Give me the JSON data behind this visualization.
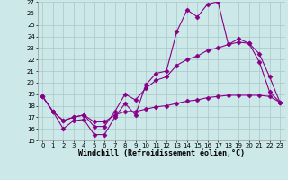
{
  "xlabel": "Windchill (Refroidissement éolien,°C)",
  "xlim": [
    -0.5,
    23.5
  ],
  "ylim": [
    15,
    27
  ],
  "xticks": [
    0,
    1,
    2,
    3,
    4,
    5,
    6,
    7,
    8,
    9,
    10,
    11,
    12,
    13,
    14,
    15,
    16,
    17,
    18,
    19,
    20,
    21,
    22,
    23
  ],
  "yticks": [
    15,
    16,
    17,
    18,
    19,
    20,
    21,
    22,
    23,
    24,
    25,
    26,
    27
  ],
  "bg_color": "#cce8e8",
  "line_color": "#880088",
  "line1_x": [
    0,
    1,
    2,
    3,
    4,
    5,
    6,
    7,
    8,
    9,
    10,
    11,
    12,
    13,
    14,
    15,
    16,
    17,
    18,
    19,
    20,
    21,
    22,
    23
  ],
  "line1_y": [
    18.8,
    17.5,
    16.0,
    16.7,
    16.8,
    15.5,
    15.5,
    17.0,
    18.2,
    17.2,
    19.8,
    20.8,
    21.0,
    24.4,
    26.3,
    25.7,
    26.8,
    27.0,
    23.3,
    23.8,
    23.4,
    21.8,
    19.2,
    18.3
  ],
  "line2_x": [
    0,
    1,
    2,
    3,
    4,
    5,
    6,
    7,
    8,
    9,
    10,
    11,
    12,
    13,
    14,
    15,
    16,
    17,
    18,
    19,
    20,
    21,
    22,
    23
  ],
  "line2_y": [
    18.8,
    17.5,
    16.7,
    17.0,
    17.2,
    16.2,
    16.2,
    17.5,
    19.0,
    18.5,
    19.5,
    20.2,
    20.5,
    21.5,
    22.0,
    22.3,
    22.8,
    23.0,
    23.3,
    23.5,
    23.4,
    22.5,
    20.5,
    18.3
  ],
  "line3_x": [
    0,
    1,
    2,
    3,
    4,
    5,
    6,
    7,
    8,
    9,
    10,
    11,
    12,
    13,
    14,
    15,
    16,
    17,
    18,
    19,
    20,
    21,
    22,
    23
  ],
  "line3_y": [
    18.8,
    17.5,
    16.7,
    17.0,
    17.2,
    16.6,
    16.6,
    17.2,
    17.5,
    17.5,
    17.7,
    17.9,
    18.0,
    18.2,
    18.4,
    18.5,
    18.7,
    18.8,
    18.9,
    18.9,
    18.9,
    18.9,
    18.8,
    18.3
  ],
  "grid_color": "#aac8c8",
  "tick_fontsize": 5.0,
  "xlabel_fontsize": 6.0,
  "marker": "D",
  "markersize": 2.5
}
